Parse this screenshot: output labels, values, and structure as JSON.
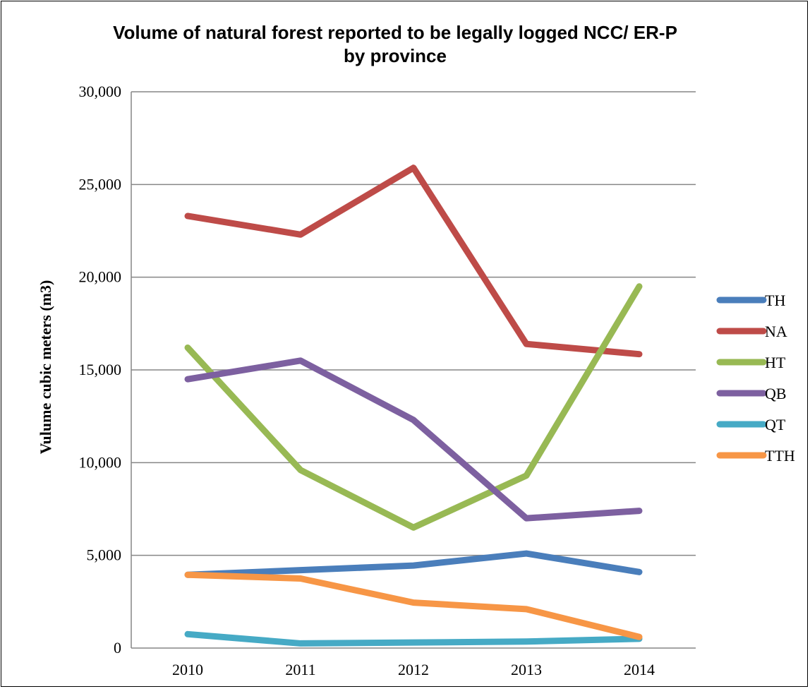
{
  "chart_data": {
    "type": "line",
    "title_lines": [
      "Volume of natural forest reported to be legally logged NCC/ ER-P",
      "by province"
    ],
    "xlabel": "",
    "ylabel": "Vulume cubic meters (m3)",
    "categories": [
      "2010",
      "2011",
      "2012",
      "2013",
      "2014"
    ],
    "ylim": [
      0,
      30000
    ],
    "yticks": [
      0,
      5000,
      10000,
      15000,
      20000,
      25000,
      30000
    ],
    "ytick_labels": [
      "0",
      "5,000",
      "10,000",
      "15,000",
      "20,000",
      "25,000",
      "30,000"
    ],
    "grid": "horizontal",
    "legend": "right",
    "series": [
      {
        "name": "TH",
        "color": "#4a7ebb",
        "values": [
          3950,
          4200,
          4450,
          5100,
          4100
        ]
      },
      {
        "name": "NA",
        "color": "#be4b48",
        "values": [
          23300,
          22300,
          25900,
          16400,
          15850
        ]
      },
      {
        "name": "HT",
        "color": "#98b954",
        "values": [
          16200,
          9600,
          6500,
          9300,
          19500
        ]
      },
      {
        "name": "QB",
        "color": "#7d60a0",
        "values": [
          14500,
          15500,
          12300,
          7000,
          7400
        ]
      },
      {
        "name": "QT",
        "color": "#46aac5",
        "values": [
          750,
          250,
          300,
          350,
          500
        ]
      },
      {
        "name": "TTH",
        "color": "#f79646",
        "values": [
          3950,
          3750,
          2450,
          2100,
          600
        ]
      }
    ]
  }
}
